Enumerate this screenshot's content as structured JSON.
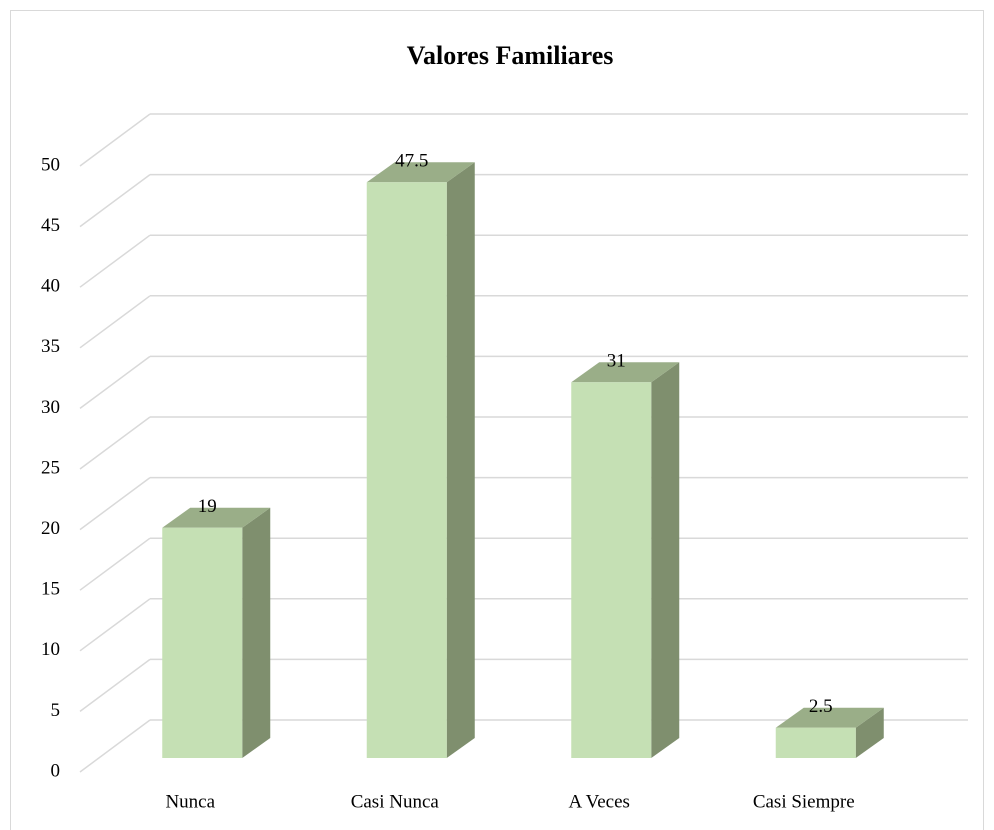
{
  "chart_data": {
    "type": "bar3d",
    "title": "Valores Familiares",
    "categories": [
      "Nunca",
      "Casi Nunca",
      "A Veces",
      "Casi Siempre"
    ],
    "values": [
      19,
      47.5,
      31,
      2.5
    ],
    "color": "#c5e0b4",
    "ylim": [
      0,
      50
    ],
    "yticks": [
      0,
      5,
      10,
      15,
      20,
      25,
      30,
      35,
      40,
      45,
      50
    ],
    "grid": true
  }
}
